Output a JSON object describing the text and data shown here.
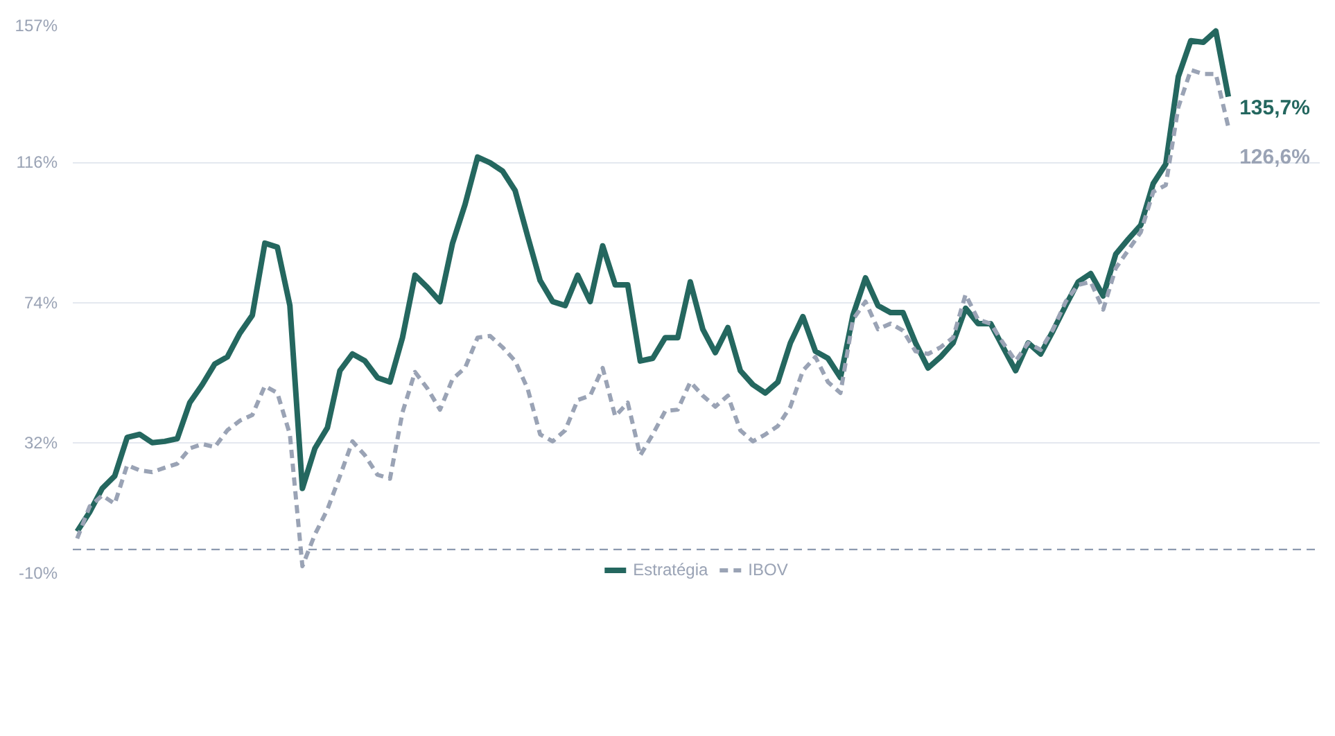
{
  "chart_data": {
    "type": "line",
    "categories": [
      null,
      null,
      null,
      null,
      null,
      null,
      null,
      null,
      null,
      null,
      null,
      null,
      null,
      null,
      null,
      null,
      null,
      null,
      null,
      null,
      null,
      null,
      null,
      null,
      null,
      null,
      null,
      null,
      null,
      null,
      null,
      null,
      null,
      null,
      null,
      null,
      null,
      null,
      null,
      null,
      null,
      null,
      null,
      null,
      null,
      null,
      null,
      null,
      null,
      null,
      null,
      null,
      null,
      null,
      null,
      null,
      null,
      null,
      null,
      null,
      null,
      null,
      null,
      null,
      null,
      null,
      null,
      null,
      null,
      null,
      null,
      null,
      null,
      null,
      null,
      null,
      null,
      null,
      null,
      null,
      null,
      null,
      null,
      null,
      null,
      null,
      null,
      null,
      null,
      null,
      null,
      null,
      null
    ],
    "series": [
      {
        "name": "Estratégia",
        "color": "#24675f",
        "line_style": "solid",
        "values": [
          5.4,
          11.2,
          18.3,
          22.0,
          33.6,
          34.5,
          32.0,
          32.4,
          33.2,
          44.0,
          49.4,
          55.6,
          57.7,
          64.8,
          70.2,
          91.8,
          90.6,
          73.1,
          18.3,
          30.3,
          36.5,
          53.6,
          58.6,
          56.5,
          51.5,
          50.2,
          63.5,
          82.2,
          78.5,
          74.3,
          91.8,
          103.4,
          117.6,
          115.9,
          113.4,
          107.6,
          93.9,
          80.6,
          74.3,
          73.1,
          82.2,
          74.3,
          91.0,
          79.3,
          79.3,
          56.5,
          57.3,
          63.5,
          63.5,
          80.2,
          66.0,
          59.0,
          66.5,
          53.6,
          49.4,
          46.9,
          50.2,
          61.9,
          69.8,
          59.4,
          57.3,
          51.5,
          70.2,
          81.4,
          73.1,
          71.0,
          71.0,
          61.9,
          54.4,
          57.7,
          61.9,
          72.3,
          67.7,
          67.7,
          60.6,
          53.6,
          61.9,
          58.6,
          65.6,
          73.1,
          80.2,
          82.7,
          76.0,
          88.5,
          93.0,
          97.2,
          109.7,
          115.5,
          141.7,
          152.5,
          152.0,
          155.4,
          135.7
        ],
        "value_labels": [
          null,
          null,
          null,
          null,
          null,
          null,
          null,
          null,
          null,
          null,
          null,
          null,
          null,
          null,
          null,
          null,
          null,
          null,
          null,
          null,
          null,
          null,
          null,
          null,
          null,
          null,
          null,
          null,
          null,
          null,
          null,
          null,
          null,
          null,
          null,
          null,
          null,
          null,
          null,
          null,
          null,
          null,
          null,
          null,
          null,
          null,
          null,
          null,
          null,
          null,
          null,
          null,
          null,
          null,
          null,
          null,
          null,
          null,
          null,
          null,
          null,
          null,
          null,
          null,
          null,
          null,
          null,
          null,
          null,
          null,
          null,
          null,
          null,
          null,
          null,
          null,
          null,
          null,
          null,
          null,
          null,
          null,
          null,
          null,
          null,
          null,
          null,
          null,
          null,
          null,
          null,
          null,
          "135,7%"
        ]
      },
      {
        "name": "IBOV",
        "color": "#9aa3b5",
        "line_style": "dashed",
        "values": [
          3.3,
          12.9,
          16.2,
          13.7,
          25.3,
          23.7,
          23.2,
          24.5,
          25.7,
          30.3,
          31.6,
          30.7,
          35.7,
          38.6,
          40.3,
          49.0,
          46.9,
          34.5,
          -5.0,
          4.5,
          12.0,
          22.0,
          32.4,
          28.2,
          22.4,
          21.2,
          41.1,
          53.2,
          48.2,
          41.9,
          51.1,
          54.4,
          63.5,
          64.0,
          60.6,
          56.5,
          48.2,
          34.5,
          32.4,
          35.7,
          44.8,
          46.1,
          54.4,
          39.9,
          44.0,
          28.2,
          34.5,
          41.5,
          41.9,
          50.2,
          46.1,
          42.8,
          46.1,
          35.7,
          32.4,
          34.5,
          37.0,
          42.8,
          53.6,
          57.7,
          50.2,
          46.9,
          68.9,
          74.3,
          66.0,
          67.7,
          65.6,
          59.4,
          58.6,
          60.6,
          63.5,
          76.4,
          68.9,
          67.7,
          61.9,
          56.5,
          61.9,
          59.8,
          66.0,
          74.3,
          79.3,
          80.2,
          71.9,
          84.3,
          89.7,
          95.1,
          107.2,
          109.2,
          132.5,
          143.7,
          142.5,
          142.5,
          126.6
        ],
        "value_labels": [
          null,
          null,
          null,
          null,
          null,
          null,
          null,
          null,
          null,
          null,
          null,
          null,
          null,
          null,
          null,
          null,
          null,
          null,
          null,
          null,
          null,
          null,
          null,
          null,
          null,
          null,
          null,
          null,
          null,
          null,
          null,
          null,
          null,
          null,
          null,
          null,
          null,
          null,
          null,
          null,
          null,
          null,
          null,
          null,
          null,
          null,
          null,
          null,
          null,
          null,
          null,
          null,
          null,
          null,
          null,
          null,
          null,
          null,
          null,
          null,
          null,
          null,
          null,
          null,
          null,
          null,
          null,
          null,
          null,
          null,
          null,
          null,
          null,
          null,
          null,
          null,
          null,
          null,
          null,
          null,
          null,
          null,
          null,
          null,
          null,
          null,
          null,
          null,
          null,
          null,
          null,
          null,
          "126,6%"
        ]
      }
    ],
    "ylim": [
      -10,
      157
    ],
    "yticks": [
      {
        "value": -10,
        "label": "-10%"
      },
      {
        "value": 32,
        "label": "32%"
      },
      {
        "value": 74,
        "label": "74%"
      },
      {
        "value": 116,
        "label": "116%"
      },
      {
        "value": 157,
        "label": "157%"
      }
    ],
    "tick_labels": "y",
    "grid": "y",
    "legend": "bottom",
    "ref_lines": [
      {
        "axis": "y",
        "value": 0,
        "color": "#8d9ab0",
        "line_style": "dashed"
      }
    ]
  }
}
